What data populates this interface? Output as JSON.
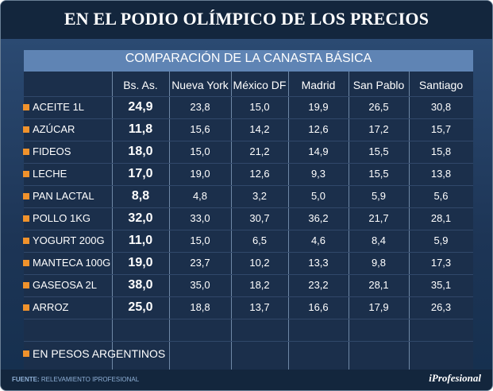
{
  "title": "EN EL PODIO OLÍMPICO DE LOS PRECIOS",
  "subtitle": "COMPARACIÓN DE LA CANASTA BÁSICA",
  "columns": [
    "Bs. As.",
    "Nueva York",
    "México DF",
    "Madrid",
    "San Pablo",
    "Santiago"
  ],
  "rows": [
    {
      "label": "ACEITE 1L",
      "values": [
        "24,9",
        "23,8",
        "15,0",
        "19,9",
        "26,5",
        "30,8"
      ]
    },
    {
      "label": "AZÚCAR",
      "values": [
        "11,8",
        "15,6",
        "14,2",
        "12,6",
        "17,2",
        "15,7"
      ]
    },
    {
      "label": "FIDEOS",
      "values": [
        "18,0",
        "15,0",
        "21,2",
        "14,9",
        "15,5",
        "15,8"
      ]
    },
    {
      "label": "LECHE",
      "values": [
        "17,0",
        "19,0",
        "12,6",
        "9,3",
        "15,5",
        "13,8"
      ]
    },
    {
      "label": "PAN LACTAL",
      "values": [
        "8,8",
        "4,8",
        "3,2",
        "5,0",
        "5,9",
        "5,6"
      ]
    },
    {
      "label": "POLLO 1KG",
      "values": [
        "32,0",
        "33,0",
        "30,7",
        "36,2",
        "21,7",
        "28,1"
      ]
    },
    {
      "label": "YOGURT 200G",
      "values": [
        "11,0",
        "15,0",
        "6,5",
        "4,6",
        "8,4",
        "5,9"
      ]
    },
    {
      "label": "MANTECA 100G",
      "values": [
        "19,0",
        "23,7",
        "10,2",
        "13,3",
        "9,8",
        "17,3"
      ]
    },
    {
      "label": "GASEOSA 2L",
      "values": [
        "38,0",
        "35,0",
        "18,2",
        "23,2",
        "28,1",
        "35,1"
      ]
    },
    {
      "label": "ARROZ",
      "values": [
        "25,0",
        "18,8",
        "13,7",
        "16,6",
        "17,9",
        "26,3"
      ]
    }
  ],
  "note": "EN PESOS ARGENTINOS",
  "source_label": "FUENTE:",
  "source_text": "RELEVAMIENTO IPROFESIONAL",
  "brand": "iProfesional",
  "colors": {
    "accent": "#f0922c",
    "subheader": "#5f84b4",
    "background": "#13263d"
  }
}
